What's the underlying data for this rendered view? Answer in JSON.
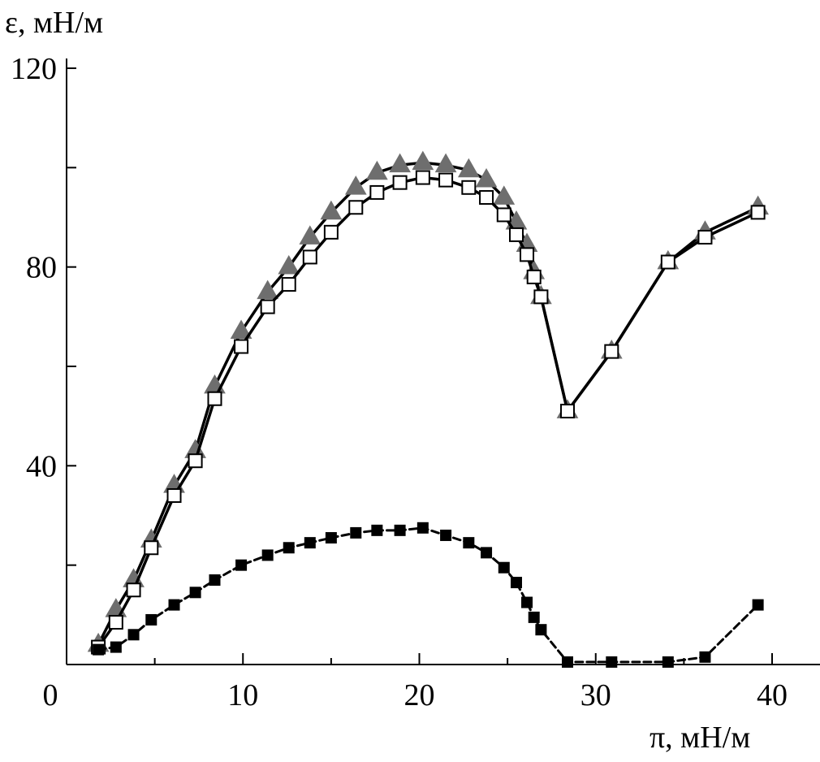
{
  "chart_data": {
    "type": "line",
    "title": "",
    "xlabel": "π, мН/м",
    "ylabel": "ε, мН/м",
    "xlim": [
      0,
      42
    ],
    "ylim": [
      0,
      120
    ],
    "xticks": [
      0,
      10,
      20,
      30,
      40
    ],
    "yticks": [
      40,
      80,
      120
    ],
    "xtick_labels": [
      "0",
      "10",
      "20",
      "30",
      "40"
    ],
    "ytick_labels": [
      "40",
      "80",
      "120"
    ],
    "grid": false,
    "colors": {
      "triangle_marker": "#6e6e6e",
      "line": "#000000",
      "open_square_fill": "#ffffff",
      "filled_square": "#000000"
    },
    "series": [
      {
        "name": "gray-triangles",
        "marker": "triangle",
        "line_style": "solid",
        "x": [
          1.8,
          2.8,
          3.8,
          4.8,
          6.1,
          7.3,
          8.4,
          9.9,
          11.4,
          12.6,
          13.8,
          15.0,
          16.4,
          17.6,
          18.9,
          20.2,
          21.5,
          22.8,
          23.8,
          24.8,
          25.5,
          26.1,
          26.5,
          26.9,
          28.4,
          30.9,
          34.1,
          36.2,
          39.2
        ],
        "y": [
          4,
          11,
          17,
          25,
          36,
          43,
          56,
          67,
          75,
          80,
          86,
          91,
          96,
          99,
          100.5,
          101,
          100.5,
          99.5,
          97.5,
          94,
          89,
          84.5,
          79,
          74,
          51,
          63,
          81,
          87,
          92
        ]
      },
      {
        "name": "open-squares",
        "marker": "square-open",
        "line_style": "solid",
        "x": [
          1.8,
          2.8,
          3.8,
          4.8,
          6.1,
          7.3,
          8.4,
          9.9,
          11.4,
          12.6,
          13.8,
          15.0,
          16.4,
          17.6,
          18.9,
          20.2,
          21.5,
          22.8,
          23.8,
          24.8,
          25.5,
          26.1,
          26.5,
          26.9,
          28.4,
          30.9,
          34.1,
          36.2,
          39.2
        ],
        "y": [
          3.5,
          8.5,
          15,
          23.5,
          34,
          41,
          53.5,
          64,
          72,
          76.5,
          82,
          87,
          92,
          95,
          97,
          98,
          97.5,
          96,
          94,
          90.5,
          86.5,
          82.5,
          78,
          74,
          51,
          63,
          81,
          86,
          91
        ]
      },
      {
        "name": "filled-squares",
        "marker": "square-filled",
        "line_style": "dashed",
        "x": [
          1.8,
          2.8,
          3.8,
          4.8,
          6.1,
          7.3,
          8.4,
          9.9,
          11.4,
          12.6,
          13.8,
          15.0,
          16.4,
          17.6,
          18.9,
          20.2,
          21.5,
          22.8,
          23.8,
          24.8,
          25.5,
          26.1,
          26.5,
          26.9,
          28.4,
          30.9,
          34.1,
          36.2,
          39.2
        ],
        "y": [
          3,
          3.5,
          6,
          9,
          12,
          14.5,
          17,
          20,
          22,
          23.5,
          24.5,
          25.5,
          26.5,
          27,
          27,
          27.5,
          26,
          24.5,
          22.5,
          19.5,
          16.5,
          12.5,
          9.5,
          7,
          0.5,
          0.5,
          0.5,
          1.5,
          12
        ]
      }
    ]
  }
}
